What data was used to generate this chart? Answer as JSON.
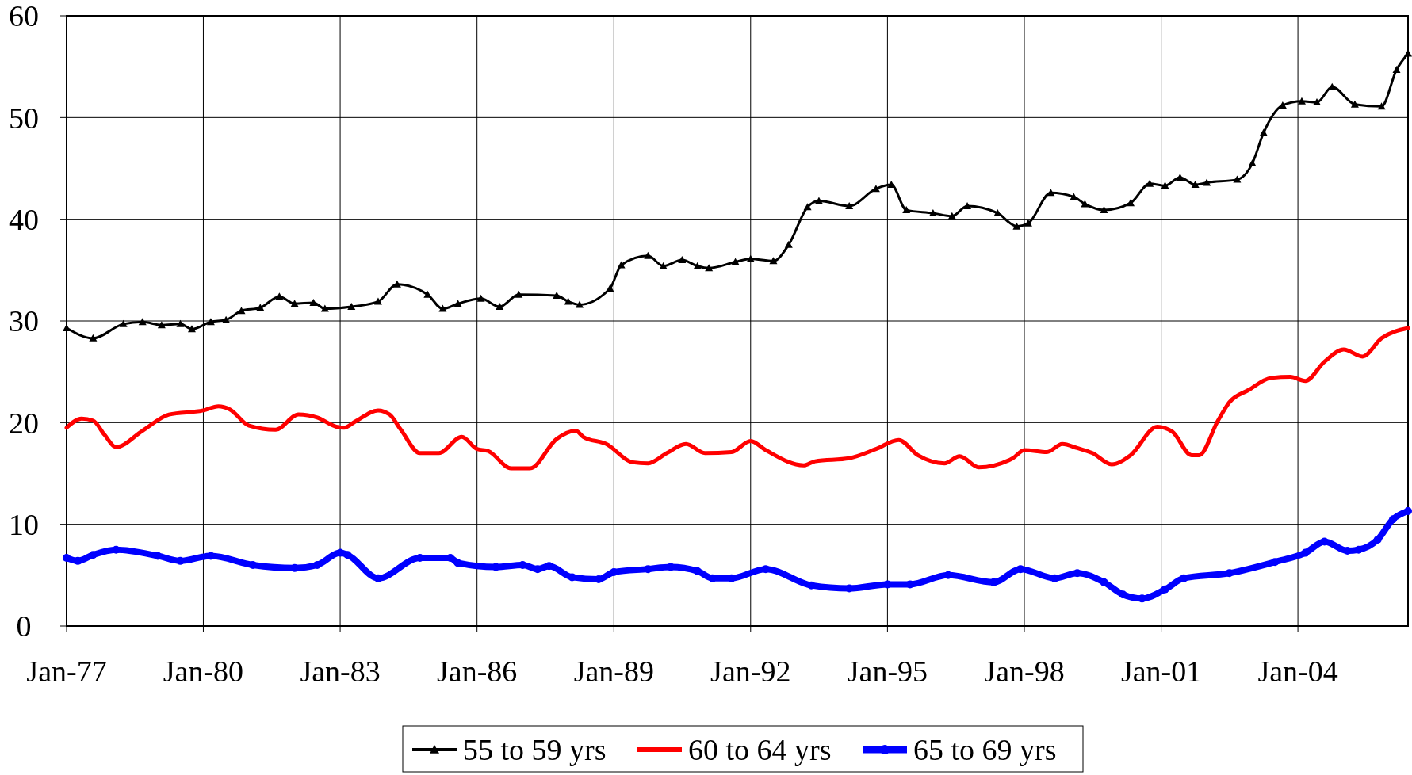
{
  "chart_data": {
    "type": "line",
    "xlim": [
      "1977-01",
      "2006-06"
    ],
    "xticks": [
      {
        "value": "1977-01",
        "label": "Jan-77"
      },
      {
        "value": "1980-01",
        "label": "Jan-80"
      },
      {
        "value": "1983-01",
        "label": "Jan-83"
      },
      {
        "value": "1986-01",
        "label": "Jan-86"
      },
      {
        "value": "1989-01",
        "label": "Jan-89"
      },
      {
        "value": "1992-01",
        "label": "Jan-92"
      },
      {
        "value": "1995-01",
        "label": "Jan-95"
      },
      {
        "value": "1998-01",
        "label": "Jan-98"
      },
      {
        "value": "2001-01",
        "label": "Jan-01"
      },
      {
        "value": "2004-01",
        "label": "Jan-04"
      }
    ],
    "ylim": [
      0,
      60
    ],
    "yticks": [
      0,
      10,
      20,
      30,
      40,
      50,
      60
    ],
    "grid": true,
    "legend": "bottom",
    "line_style": "solid",
    "series": [
      {
        "name": "55 to 59 yrs",
        "color": "#000000",
        "marker": "triangle",
        "x": [
          "1977-01",
          "1977-08",
          "1978-04",
          "1978-09",
          "1979-02",
          "1979-07",
          "1979-10",
          "1980-03",
          "1980-07",
          "1980-11",
          "1981-04",
          "1981-09",
          "1982-01",
          "1982-06",
          "1982-09",
          "1983-04",
          "1983-11",
          "1984-04",
          "1984-12",
          "1985-04",
          "1985-08",
          "1986-02",
          "1986-07",
          "1986-12",
          "1987-10",
          "1988-01",
          "1988-04",
          "1988-12",
          "1989-03",
          "1989-10",
          "1990-02",
          "1990-07",
          "1990-11",
          "1991-02",
          "1991-09",
          "1992-01",
          "1992-07",
          "1992-11",
          "1993-04",
          "1993-07",
          "1994-03",
          "1994-10",
          "1995-02",
          "1995-06",
          "1996-01",
          "1996-06",
          "1996-10",
          "1997-06",
          "1997-11",
          "1998-02",
          "1998-08",
          "1999-02",
          "1999-05",
          "1999-10",
          "2000-05",
          "2000-10",
          "2001-02",
          "2001-06",
          "2001-10",
          "2002-01",
          "2002-09",
          "2003-01",
          "2003-04",
          "2003-09",
          "2004-02",
          "2004-06",
          "2004-10",
          "2005-04",
          "2005-11",
          "2006-03",
          "2006-06"
        ],
        "values": [
          29.3,
          28.3,
          29.7,
          29.9,
          29.6,
          29.7,
          29.2,
          29.9,
          30.1,
          31.0,
          31.3,
          32.4,
          31.7,
          31.8,
          31.2,
          31.4,
          31.9,
          33.6,
          32.6,
          31.2,
          31.7,
          32.2,
          31.4,
          32.6,
          32.5,
          31.9,
          31.6,
          33.2,
          35.5,
          36.4,
          35.4,
          36.0,
          35.4,
          35.2,
          35.8,
          36.1,
          35.9,
          37.5,
          41.2,
          41.8,
          41.3,
          43.0,
          43.4,
          40.9,
          40.6,
          40.3,
          41.3,
          40.6,
          39.3,
          39.6,
          42.6,
          42.2,
          41.5,
          40.9,
          41.6,
          43.5,
          43.3,
          44.1,
          43.4,
          43.6,
          43.9,
          45.5,
          48.5,
          51.2,
          51.6,
          51.5,
          53.0,
          51.3,
          51.1,
          54.7,
          56.3
        ]
      },
      {
        "name": "60 to 64 yrs",
        "color": "#ff0000",
        "marker": "none",
        "x": [
          "1977-01",
          "1977-05",
          "1977-08",
          "1977-11",
          "1978-02",
          "1978-09",
          "1979-04",
          "1980-01",
          "1980-05",
          "1980-08",
          "1981-01",
          "1981-08",
          "1982-02",
          "1982-07",
          "1982-12",
          "1983-02",
          "1983-05",
          "1983-11",
          "1984-02",
          "1984-05",
          "1984-10",
          "1985-03",
          "1985-09",
          "1986-01",
          "1986-04",
          "1986-10",
          "1987-03",
          "1987-10",
          "1988-03",
          "1988-05",
          "1988-11",
          "1989-06",
          "1989-10",
          "1990-03",
          "1990-08",
          "1991-01",
          "1991-08",
          "1992-01",
          "1992-05",
          "1993-03",
          "1993-06",
          "1994-03",
          "1994-10",
          "1995-04",
          "1995-09",
          "1996-04",
          "1996-08",
          "1997-01",
          "1997-10",
          "1998-01",
          "1998-07",
          "1998-11",
          "1999-03",
          "1999-07",
          "1999-12",
          "2000-05",
          "2000-12",
          "2001-04",
          "2001-09",
          "2001-11",
          "2002-04",
          "2002-07",
          "2002-12",
          "2003-06",
          "2003-11",
          "2004-03",
          "2004-08",
          "2005-01",
          "2005-06",
          "2005-11",
          "2006-06"
        ],
        "values": [
          19.5,
          20.4,
          20.2,
          18.8,
          17.6,
          19.2,
          20.8,
          21.2,
          21.6,
          21.3,
          19.7,
          19.3,
          20.8,
          20.5,
          19.6,
          19.5,
          20.1,
          21.2,
          20.8,
          19.3,
          17.0,
          17.0,
          18.6,
          17.4,
          17.2,
          15.5,
          15.5,
          18.4,
          19.2,
          18.6,
          17.9,
          16.1,
          16.0,
          17.0,
          17.9,
          17.0,
          17.1,
          18.2,
          17.3,
          15.8,
          16.2,
          16.5,
          17.4,
          18.3,
          16.8,
          16.0,
          16.7,
          15.6,
          16.5,
          17.3,
          17.1,
          17.9,
          17.5,
          17.0,
          15.9,
          16.8,
          19.6,
          19.1,
          16.8,
          16.8,
          20.2,
          22.0,
          23.2,
          24.4,
          24.5,
          24.1,
          26.0,
          27.2,
          26.5,
          28.3,
          29.3
        ]
      },
      {
        "name": "65 to 69 yrs",
        "color": "#0000ff",
        "marker": "circle",
        "x": [
          "1977-01",
          "1977-04",
          "1977-08",
          "1978-02",
          "1979-01",
          "1979-07",
          "1980-03",
          "1981-02",
          "1982-01",
          "1982-07",
          "1983-01",
          "1983-03",
          "1983-11",
          "1984-10",
          "1985-06",
          "1985-08",
          "1986-06",
          "1987-01",
          "1987-05",
          "1987-08",
          "1988-02",
          "1988-09",
          "1989-01",
          "1989-10",
          "1990-04",
          "1990-11",
          "1991-03",
          "1991-08",
          "1992-05",
          "1993-05",
          "1994-03",
          "1995-01",
          "1995-07",
          "1996-05",
          "1997-05",
          "1997-12",
          "1998-09",
          "1999-03",
          "1999-10",
          "2000-03",
          "2000-08",
          "2001-02",
          "2001-07",
          "2002-07",
          "2003-07",
          "2004-03",
          "2004-08",
          "2005-02",
          "2005-05",
          "2005-10",
          "2006-02",
          "2006-06"
        ],
        "values": [
          6.7,
          6.4,
          7.0,
          7.5,
          6.9,
          6.4,
          6.9,
          6.0,
          5.7,
          6.0,
          7.2,
          7.0,
          4.7,
          6.7,
          6.7,
          6.2,
          5.8,
          6.0,
          5.6,
          5.9,
          4.8,
          4.6,
          5.3,
          5.6,
          5.8,
          5.4,
          4.7,
          4.7,
          5.6,
          4.0,
          3.7,
          4.1,
          4.1,
          5.0,
          4.3,
          5.6,
          4.7,
          5.2,
          4.3,
          3.1,
          2.7,
          3.6,
          4.7,
          5.2,
          6.3,
          7.2,
          8.3,
          7.4,
          7.5,
          8.5,
          10.5,
          11.3
        ]
      }
    ]
  }
}
